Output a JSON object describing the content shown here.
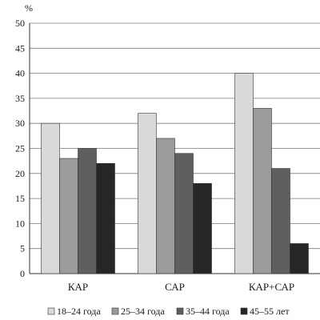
{
  "chart_data": {
    "type": "bar",
    "unit_label": "%",
    "title": "",
    "xlabel": "",
    "ylabel": "",
    "ylim": [
      0,
      50
    ],
    "yticks": [
      0,
      5,
      10,
      15,
      20,
      25,
      30,
      35,
      40,
      45,
      50
    ],
    "grid": true,
    "legend_position": "bottom",
    "categories": [
      "КАР",
      "САР",
      "КАР+САР"
    ],
    "series": [
      {
        "name": "18–24 года",
        "color": "#d9d9d9",
        "values": [
          30,
          32,
          40
        ]
      },
      {
        "name": "25–34 года",
        "color": "#9b9b9b",
        "values": [
          23,
          27,
          33
        ]
      },
      {
        "name": "35–44 года",
        "color": "#5f5f5f",
        "values": [
          25,
          24,
          21
        ]
      },
      {
        "name": "45–55 лет",
        "color": "#262626",
        "values": [
          22,
          18,
          6
        ]
      }
    ]
  }
}
